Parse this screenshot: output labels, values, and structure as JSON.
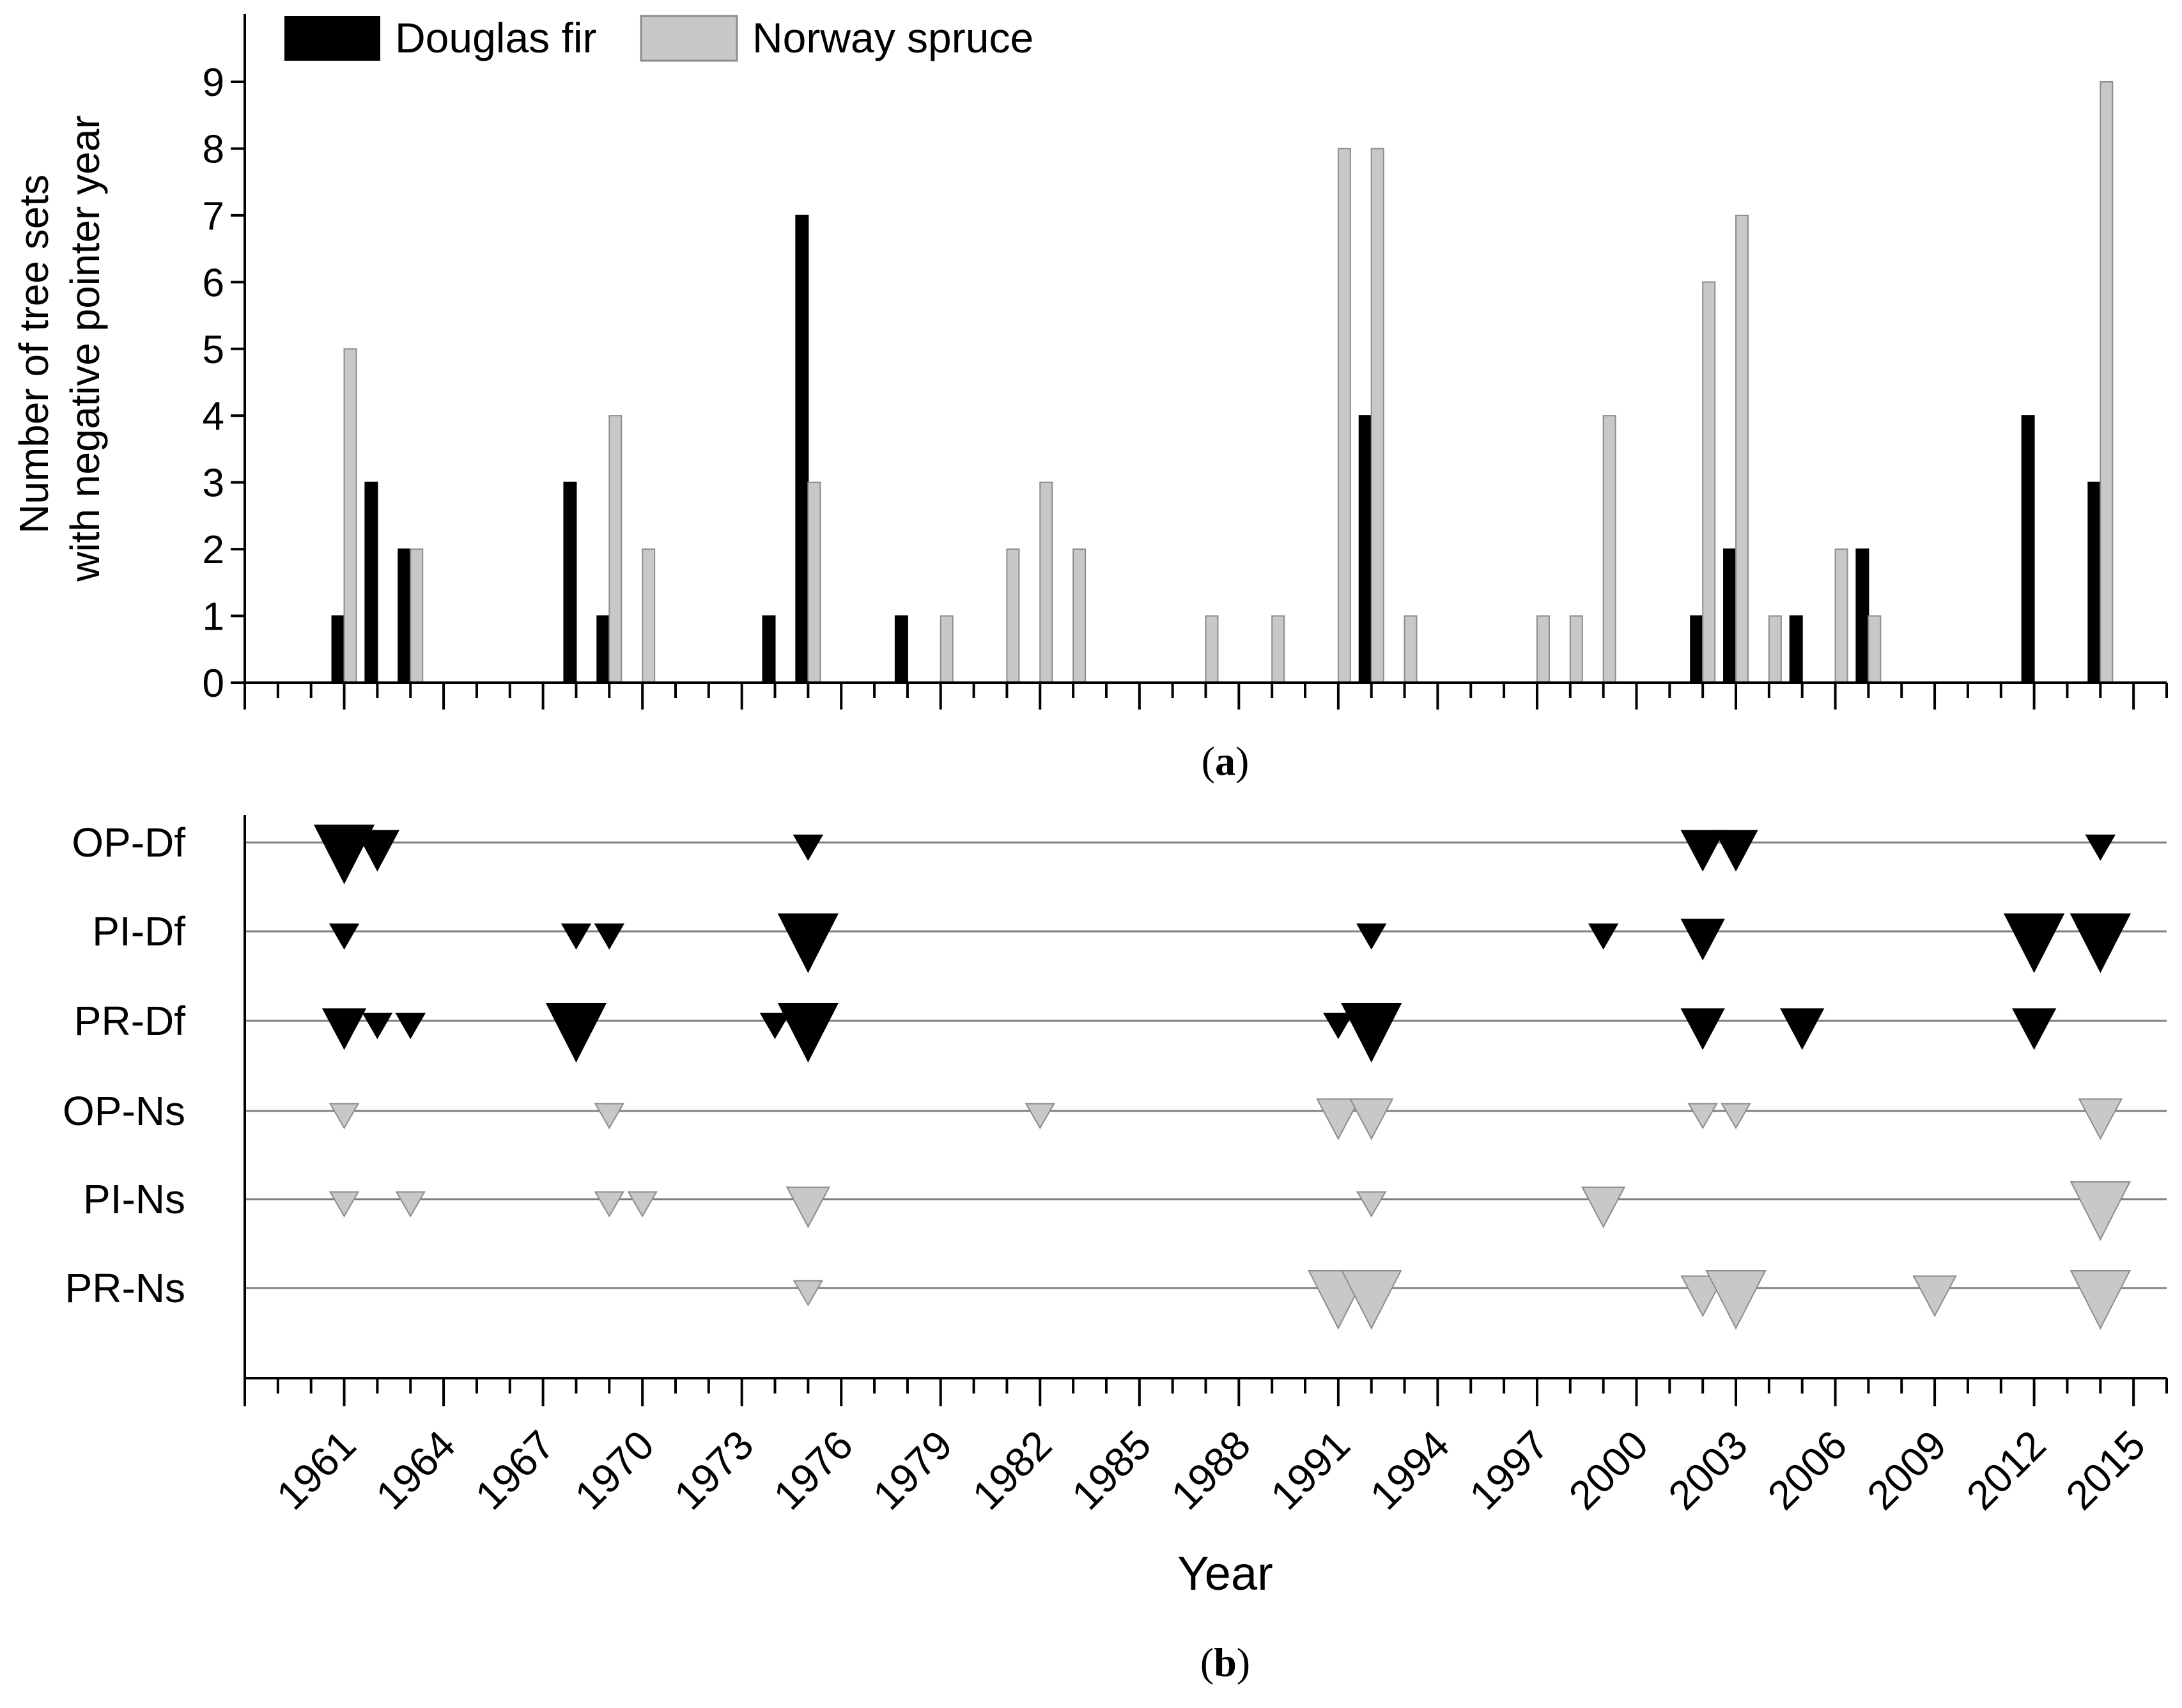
{
  "colors": {
    "douglas_fir": "#000000",
    "norway_spruce": "#c8c8c8",
    "norway_spruce_edge": "#8c8c8c",
    "axis": "#000000",
    "rowline": "#7f7f7f"
  },
  "panel_a": {
    "caption_open": "(",
    "caption_letter": "a",
    "caption_close": ")"
  },
  "panel_b": {
    "caption_open": "(",
    "caption_letter": "b",
    "caption_close": ")"
  },
  "chart_data": [
    {
      "type": "bar",
      "panel": "a",
      "ylabel_line1": "Number of tree sets",
      "ylabel_line2": "with negative pointer year",
      "ylim": [
        0,
        9
      ],
      "yticks": [
        "0",
        "1",
        "2",
        "3",
        "4",
        "5",
        "6",
        "7",
        "8",
        "9"
      ],
      "xlim": [
        1958,
        2016
      ],
      "legend_position": "top-left",
      "series": [
        {
          "name": "Douglas fir",
          "color": "#000000",
          "points": [
            {
              "year": 1961,
              "value": 1
            },
            {
              "year": 1962,
              "value": 3
            },
            {
              "year": 1963,
              "value": 2
            },
            {
              "year": 1968,
              "value": 3
            },
            {
              "year": 1969,
              "value": 1
            },
            {
              "year": 1974,
              "value": 1
            },
            {
              "year": 1975,
              "value": 7
            },
            {
              "year": 1978,
              "value": 1
            },
            {
              "year": 1992,
              "value": 4
            },
            {
              "year": 2002,
              "value": 1
            },
            {
              "year": 2003,
              "value": 2
            },
            {
              "year": 2005,
              "value": 1
            },
            {
              "year": 2007,
              "value": 2
            },
            {
              "year": 2012,
              "value": 4
            },
            {
              "year": 2014,
              "value": 3
            }
          ]
        },
        {
          "name": "Norway spruce",
          "color": "#c8c8c8",
          "points": [
            {
              "year": 1961,
              "value": 5
            },
            {
              "year": 1963,
              "value": 2
            },
            {
              "year": 1969,
              "value": 4
            },
            {
              "year": 1970,
              "value": 2
            },
            {
              "year": 1975,
              "value": 3
            },
            {
              "year": 1979,
              "value": 1
            },
            {
              "year": 1981,
              "value": 2
            },
            {
              "year": 1982,
              "value": 3
            },
            {
              "year": 1983,
              "value": 2
            },
            {
              "year": 1987,
              "value": 1
            },
            {
              "year": 1989,
              "value": 1
            },
            {
              "year": 1991,
              "value": 8
            },
            {
              "year": 1992,
              "value": 8
            },
            {
              "year": 1993,
              "value": 1
            },
            {
              "year": 1997,
              "value": 1
            },
            {
              "year": 1998,
              "value": 1
            },
            {
              "year": 1999,
              "value": 4
            },
            {
              "year": 2002,
              "value": 6
            },
            {
              "year": 2003,
              "value": 7
            },
            {
              "year": 2004,
              "value": 1
            },
            {
              "year": 2006,
              "value": 2
            },
            {
              "year": 2007,
              "value": 1
            },
            {
              "year": 2014,
              "value": 9
            }
          ]
        }
      ]
    },
    {
      "type": "scatter",
      "panel": "b",
      "xlabel": "Year",
      "xlim": [
        1958,
        2016
      ],
      "xticks": [
        "1961",
        "1964",
        "1967",
        "1970",
        "1973",
        "1976",
        "1979",
        "1982",
        "1985",
        "1988",
        "1991",
        "1994",
        "1997",
        "2000",
        "2003",
        "2006",
        "2009",
        "2012",
        "2015"
      ],
      "marker": "downward triangle; size reflects pointer-year intensity class (1 = weak, 2 = strong, 3 = extreme)",
      "rows": [
        {
          "label": "OP-Df",
          "species": "Douglas fir",
          "points": [
            {
              "year": 1961,
              "size": 3
            },
            {
              "year": 1962,
              "size": 2
            },
            {
              "year": 1975,
              "size": 1
            },
            {
              "year": 2002,
              "size": 2
            },
            {
              "year": 2003,
              "size": 2
            },
            {
              "year": 2014,
              "size": 1
            }
          ]
        },
        {
          "label": "PI-Df",
          "species": "Douglas fir",
          "points": [
            {
              "year": 1961,
              "size": 1
            },
            {
              "year": 1968,
              "size": 1
            },
            {
              "year": 1969,
              "size": 1
            },
            {
              "year": 1975,
              "size": 3
            },
            {
              "year": 1992,
              "size": 1
            },
            {
              "year": 1999,
              "size": 1
            },
            {
              "year": 2002,
              "size": 2
            },
            {
              "year": 2012,
              "size": 3
            },
            {
              "year": 2014,
              "size": 3
            }
          ]
        },
        {
          "label": "PR-Df",
          "species": "Douglas fir",
          "points": [
            {
              "year": 1961,
              "size": 2
            },
            {
              "year": 1962,
              "size": 1
            },
            {
              "year": 1963,
              "size": 1
            },
            {
              "year": 1968,
              "size": 3
            },
            {
              "year": 1974,
              "size": 1
            },
            {
              "year": 1975,
              "size": 3
            },
            {
              "year": 1991,
              "size": 1
            },
            {
              "year": 1992,
              "size": 3
            },
            {
              "year": 2002,
              "size": 2
            },
            {
              "year": 2005,
              "size": 2
            },
            {
              "year": 2012,
              "size": 2
            }
          ]
        },
        {
          "label": "OP-Ns",
          "species": "Norway spruce",
          "points": [
            {
              "year": 1961,
              "size": 1
            },
            {
              "year": 1969,
              "size": 1
            },
            {
              "year": 1982,
              "size": 1
            },
            {
              "year": 1991,
              "size": 2
            },
            {
              "year": 1992,
              "size": 2
            },
            {
              "year": 2002,
              "size": 1
            },
            {
              "year": 2003,
              "size": 1
            },
            {
              "year": 2014,
              "size": 2
            }
          ]
        },
        {
          "label": "PI-Ns",
          "species": "Norway spruce",
          "points": [
            {
              "year": 1961,
              "size": 1
            },
            {
              "year": 1963,
              "size": 1
            },
            {
              "year": 1969,
              "size": 1
            },
            {
              "year": 1970,
              "size": 1
            },
            {
              "year": 1975,
              "size": 2
            },
            {
              "year": 1992,
              "size": 1
            },
            {
              "year": 1999,
              "size": 2
            },
            {
              "year": 2014,
              "size": 3
            }
          ]
        },
        {
          "label": "PR-Ns",
          "species": "Norway spruce",
          "points": [
            {
              "year": 1975,
              "size": 1
            },
            {
              "year": 1991,
              "size": 3
            },
            {
              "year": 1992,
              "size": 3
            },
            {
              "year": 2002,
              "size": 2
            },
            {
              "year": 2003,
              "size": 3
            },
            {
              "year": 2009,
              "size": 2
            },
            {
              "year": 2014,
              "size": 3
            }
          ]
        }
      ]
    }
  ]
}
